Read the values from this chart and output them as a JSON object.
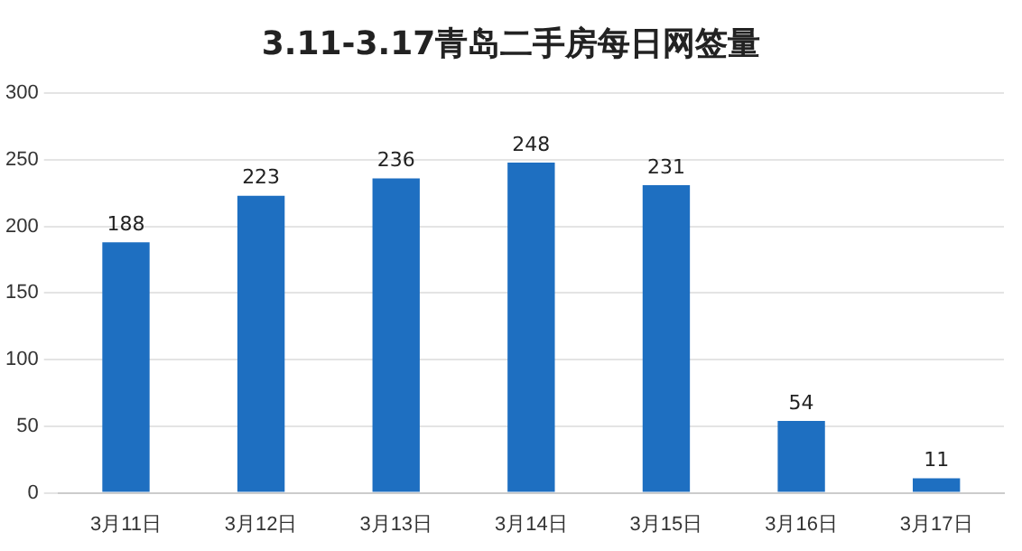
{
  "chart_data": {
    "type": "bar",
    "title": "3.11-3.17青岛二手房每日网签量",
    "categories": [
      "3月11日",
      "3月12日",
      "3月13日",
      "3月14日",
      "3月15日",
      "3月16日",
      "3月17日"
    ],
    "values": [
      188,
      223,
      236,
      248,
      231,
      54,
      11
    ],
    "color": "#1e6fc1",
    "ylim": [
      0,
      300
    ],
    "yticks": [
      0,
      50,
      100,
      150,
      200,
      250,
      300
    ],
    "grid": "y",
    "data_labels": true
  }
}
